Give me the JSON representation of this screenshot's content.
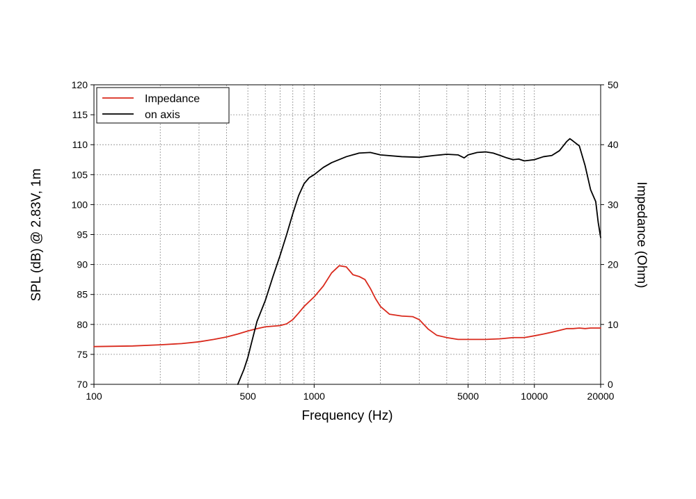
{
  "chart_data": {
    "type": "line",
    "xlabel": "Frequency (Hz)",
    "ylabel": "SPL (dB) @ 2.83V, 1m",
    "y2label": "Impedance (Ohm)",
    "x_scale": "log",
    "xlim": [
      100,
      20000
    ],
    "ylim": [
      70,
      120
    ],
    "y2lim": [
      0,
      50
    ],
    "x_ticks": [
      100,
      500,
      1000,
      5000,
      10000,
      20000
    ],
    "x_tick_labels": [
      "100",
      "500",
      "1000",
      "5000",
      "10000",
      "20000"
    ],
    "y_ticks": [
      70,
      75,
      80,
      85,
      90,
      95,
      100,
      105,
      110,
      115,
      120
    ],
    "y2_ticks": [
      0,
      10,
      20,
      30,
      40,
      50
    ],
    "grid": true,
    "legend_position": "top-left",
    "series": [
      {
        "name": "Impedance",
        "axis": "right",
        "color": "#d9291c",
        "points": [
          [
            100,
            6.3
          ],
          [
            150,
            6.4
          ],
          [
            200,
            6.6
          ],
          [
            250,
            6.8
          ],
          [
            300,
            7.1
          ],
          [
            350,
            7.5
          ],
          [
            400,
            7.9
          ],
          [
            450,
            8.4
          ],
          [
            500,
            8.9
          ],
          [
            550,
            9.3
          ],
          [
            600,
            9.6
          ],
          [
            700,
            9.8
          ],
          [
            750,
            10.1
          ],
          [
            800,
            10.8
          ],
          [
            850,
            11.9
          ],
          [
            900,
            13.0
          ],
          [
            1000,
            14.6
          ],
          [
            1100,
            16.4
          ],
          [
            1200,
            18.6
          ],
          [
            1300,
            19.8
          ],
          [
            1400,
            19.6
          ],
          [
            1500,
            18.3
          ],
          [
            1600,
            18.0
          ],
          [
            1700,
            17.5
          ],
          [
            1800,
            16.0
          ],
          [
            1900,
            14.3
          ],
          [
            2000,
            13.0
          ],
          [
            2200,
            11.7
          ],
          [
            2500,
            11.4
          ],
          [
            2800,
            11.3
          ],
          [
            3000,
            10.8
          ],
          [
            3300,
            9.2
          ],
          [
            3600,
            8.2
          ],
          [
            4000,
            7.8
          ],
          [
            4500,
            7.5
          ],
          [
            5000,
            7.5
          ],
          [
            6000,
            7.5
          ],
          [
            7000,
            7.6
          ],
          [
            8000,
            7.8
          ],
          [
            9000,
            7.8
          ],
          [
            10000,
            8.1
          ],
          [
            11000,
            8.4
          ],
          [
            12000,
            8.7
          ],
          [
            13000,
            9.0
          ],
          [
            14000,
            9.3
          ],
          [
            15000,
            9.3
          ],
          [
            16000,
            9.4
          ],
          [
            17000,
            9.3
          ],
          [
            18000,
            9.4
          ],
          [
            19000,
            9.4
          ],
          [
            20000,
            9.4
          ]
        ]
      },
      {
        "name": "on axis",
        "axis": "left",
        "color": "#000000",
        "points": [
          [
            450,
            70.0
          ],
          [
            480,
            72.5
          ],
          [
            500,
            74.5
          ],
          [
            520,
            77.0
          ],
          [
            550,
            80.5
          ],
          [
            600,
            84.0
          ],
          [
            650,
            88.0
          ],
          [
            700,
            91.5
          ],
          [
            750,
            95.0
          ],
          [
            800,
            98.5
          ],
          [
            850,
            101.5
          ],
          [
            900,
            103.5
          ],
          [
            950,
            104.5
          ],
          [
            1000,
            105.0
          ],
          [
            1100,
            106.2
          ],
          [
            1200,
            107.0
          ],
          [
            1400,
            108.0
          ],
          [
            1600,
            108.6
          ],
          [
            1800,
            108.7
          ],
          [
            2000,
            108.3
          ],
          [
            2500,
            108.0
          ],
          [
            3000,
            107.9
          ],
          [
            3500,
            108.2
          ],
          [
            4000,
            108.4
          ],
          [
            4500,
            108.3
          ],
          [
            4800,
            107.8
          ],
          [
            5000,
            108.3
          ],
          [
            5500,
            108.7
          ],
          [
            6000,
            108.8
          ],
          [
            6500,
            108.6
          ],
          [
            7000,
            108.2
          ],
          [
            7500,
            107.8
          ],
          [
            8000,
            107.5
          ],
          [
            8500,
            107.6
          ],
          [
            9000,
            107.3
          ],
          [
            9500,
            107.4
          ],
          [
            10000,
            107.5
          ],
          [
            11000,
            108.0
          ],
          [
            12000,
            108.2
          ],
          [
            13000,
            109.0
          ],
          [
            14000,
            110.5
          ],
          [
            14500,
            111.0
          ],
          [
            15000,
            110.6
          ],
          [
            16000,
            109.8
          ],
          [
            17000,
            106.5
          ],
          [
            18000,
            102.5
          ],
          [
            19000,
            100.5
          ],
          [
            19500,
            97.0
          ],
          [
            20000,
            94.5
          ]
        ]
      }
    ]
  }
}
